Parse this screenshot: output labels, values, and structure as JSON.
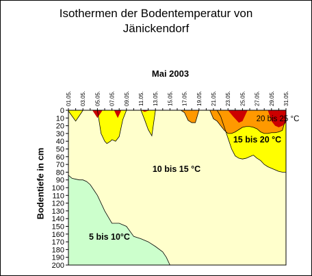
{
  "chart_data": {
    "type": "area",
    "title": "Isothermen der Bodentemperatur von",
    "title_line2": "Jänickendorf",
    "period_label": "Mai 2003",
    "ylabel": "Bodentiefe in cm",
    "xlabel": "",
    "x_categories": [
      "01.05.",
      "02.05.",
      "03.05.",
      "04.05.",
      "05.05.",
      "06.05.",
      "07.05.",
      "08.05.",
      "09.05.",
      "10.05.",
      "11.05.",
      "12.05.",
      "13.05.",
      "14.05.",
      "15.05.",
      "16.05.",
      "17.05.",
      "18.05.",
      "19.05.",
      "20.05.",
      "21.05.",
      "22.05.",
      "23.05.",
      "24.05.",
      "25.05.",
      "26.05.",
      "27.05.",
      "28.05.",
      "29.05.",
      "30.05.",
      "31.05."
    ],
    "x_tick_labels": [
      "01.05.",
      "03.05.",
      "05.05.",
      "07.05.",
      "09.05.",
      "11.05.",
      "13.05.",
      "15.05.",
      "17.05.",
      "19.05.",
      "21.05.",
      "23.05.",
      "25.05.",
      "27.05.",
      "29.05.",
      "31.05."
    ],
    "y_ticks": [
      0,
      10,
      20,
      30,
      40,
      50,
      60,
      70,
      80,
      90,
      100,
      110,
      120,
      130,
      140,
      150,
      160,
      170,
      180,
      190,
      200
    ],
    "ylim": [
      0,
      200
    ],
    "y_inverted": true,
    "grid": false,
    "colors": {
      "zone_5_10": "#ccffcc",
      "zone_10_15": "#ffffcc",
      "zone_15_20": "#ffff00",
      "zone_20_25": "#ff9900",
      "zone_25_plus": "#cc0000"
    },
    "series": [
      {
        "name": "10 °C",
        "x": [
          1,
          1.5,
          2,
          2.5,
          3,
          3.5,
          4,
          4.5,
          5,
          5.5,
          6,
          7,
          8,
          9,
          10,
          11,
          12,
          13,
          14,
          14.5,
          15
        ],
        "depth_cm": [
          84,
          88,
          89,
          90,
          90,
          92,
          96,
          103,
          110,
          120,
          130,
          146,
          146,
          150,
          163,
          166,
          170,
          176,
          183,
          190,
          200
        ]
      },
      {
        "name": "15 °C",
        "x": [
          1,
          2,
          2.8,
          3,
          3.5,
          4,
          4.5,
          5,
          5.5,
          6,
          6.3,
          6.8,
          7,
          7.5,
          8,
          8.5,
          9,
          9.5,
          10,
          10.5,
          11,
          11.5,
          12,
          12.5,
          13,
          13.5,
          14,
          14.5,
          15,
          15.5,
          16,
          16.5,
          17,
          17.5,
          18,
          18.5,
          19,
          19.5,
          20,
          20.5,
          21,
          21.5,
          22,
          22.5,
          23,
          23.5,
          24,
          24.5,
          25,
          25.5,
          26,
          26.5,
          27,
          27.5,
          28,
          28.5,
          29,
          29.5,
          30,
          30.5,
          31
        ],
        "depth_cm": [
          1,
          14,
          3,
          0,
          0,
          0,
          0,
          0,
          30,
          40,
          43,
          40,
          38,
          40,
          34,
          12,
          0,
          0,
          0,
          0,
          0,
          12,
          25,
          33,
          0,
          0,
          0,
          0,
          0,
          0,
          0,
          0,
          0,
          0,
          0,
          0,
          0,
          0,
          0,
          0,
          0,
          0,
          8,
          22,
          36,
          50,
          59,
          62,
          63,
          62,
          60,
          58,
          62,
          65,
          70,
          73,
          75,
          77,
          79,
          80,
          80
        ]
      },
      {
        "name": "20 °C",
        "x": [
          1,
          2,
          3,
          4,
          5,
          6,
          7,
          8,
          9,
          10,
          11,
          12,
          13,
          14,
          15,
          16,
          16.5,
          17,
          17.5,
          18,
          18.5,
          19,
          19.5,
          20,
          20.5,
          21,
          21.5,
          22,
          22.5,
          23,
          23.5,
          24,
          24.5,
          25,
          25.5,
          26,
          26.5,
          27,
          27.5,
          28,
          28.5,
          29,
          29.5,
          30,
          30.5,
          31
        ],
        "depth_cm": [
          0,
          0,
          0,
          0,
          0,
          0,
          0,
          0,
          0,
          0,
          0,
          0,
          0,
          0,
          0,
          0,
          0,
          3,
          13,
          16,
          16,
          0,
          0,
          0,
          0,
          11,
          14,
          20,
          26,
          30,
          30,
          28,
          25,
          22,
          21,
          21,
          22,
          24,
          28,
          30,
          30,
          29,
          29,
          28,
          26,
          10
        ]
      },
      {
        "name": "25 °C",
        "x": [
          4.3,
          5,
          5.7,
          7.3,
          7.8,
          8.3,
          11,
          11.5,
          12.2,
          23,
          23.7,
          24.5,
          25,
          25.7,
          28.5,
          29,
          29.5,
          30,
          30.5,
          31
        ],
        "depth_cm": [
          0,
          10,
          0,
          0,
          10,
          0,
          0,
          2,
          0,
          0,
          8,
          16,
          14,
          0,
          0,
          14,
          20,
          22,
          20,
          16
        ]
      }
    ],
    "zone_labels": [
      "5 bis 10°C",
      "10 bis 15 °C",
      "15 bis 20 °C",
      "20 bis 25 °C"
    ],
    "legend": "none"
  }
}
